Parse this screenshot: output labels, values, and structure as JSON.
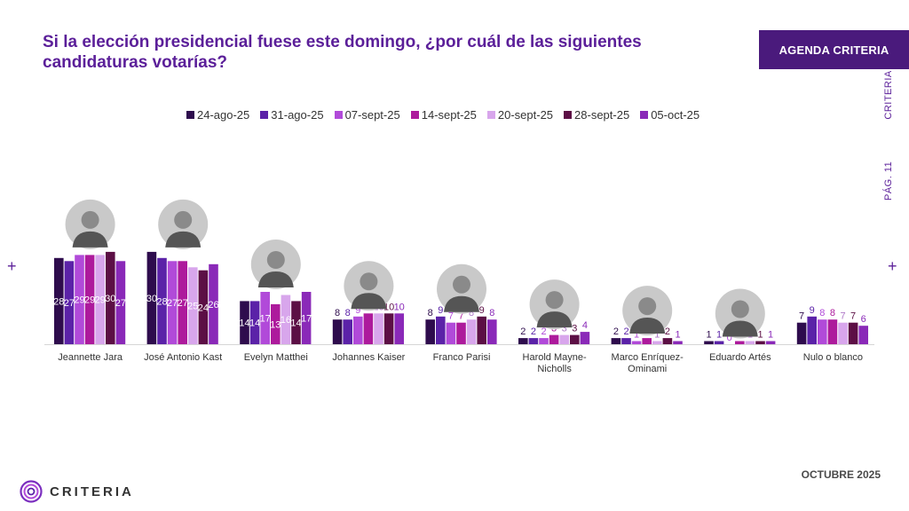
{
  "title": "Si la elección presidencial fuese este domingo, ¿por cuál de las siguientes candidaturas votarías?",
  "badge": "AGENDA CRITERIA",
  "side_label": "PÁG. 11",
  "side_brand": "CRITERIA",
  "left_mark": "+",
  "right_mark": "+",
  "footer_date": "OCTUBRE 2025",
  "logo_text": "CRITERIA",
  "chart_data": {
    "type": "bar",
    "title": "",
    "xlabel": "",
    "ylabel": "",
    "ylim": [
      0,
      30
    ],
    "grid": false,
    "legend_position": "top",
    "categories": [
      "Jeannette Jara",
      "José Antonio Kast",
      "Evelyn Matthei",
      "Johannes Kaiser",
      "Franco Parisi",
      "Harold Mayne-Nicholls",
      "Marco Enríquez-Ominami",
      "Eduardo Artés",
      "Nulo o blanco"
    ],
    "series": [
      {
        "name": "24-ago-25",
        "color": "#2e0c4d",
        "values": [
          28,
          30,
          14,
          8,
          8,
          2,
          2,
          1,
          7
        ]
      },
      {
        "name": "31-ago-25",
        "color": "#5b22a8",
        "values": [
          27,
          28,
          14,
          8,
          9,
          2,
          2,
          1,
          9
        ]
      },
      {
        "name": "07-sept-25",
        "color": "#b14ad9",
        "values": [
          29,
          27,
          17,
          9,
          7,
          2,
          1,
          0,
          8
        ]
      },
      {
        "name": "14-sept-25",
        "color": "#ad1a9c",
        "values": [
          29,
          27,
          13,
          10,
          7,
          3,
          2,
          1,
          8
        ]
      },
      {
        "name": "20-sept-25",
        "color": "#d8a6ec",
        "values": [
          29,
          25,
          16,
          10,
          8,
          3,
          1,
          1,
          7
        ]
      },
      {
        "name": "28-sept-25",
        "color": "#5c0f45",
        "values": [
          30,
          24,
          14,
          10,
          9,
          3,
          2,
          1,
          7
        ]
      },
      {
        "name": "05-oct-25",
        "color": "#8a29b8",
        "values": [
          27,
          26,
          17,
          10,
          8,
          4,
          1,
          1,
          6
        ]
      }
    ]
  }
}
